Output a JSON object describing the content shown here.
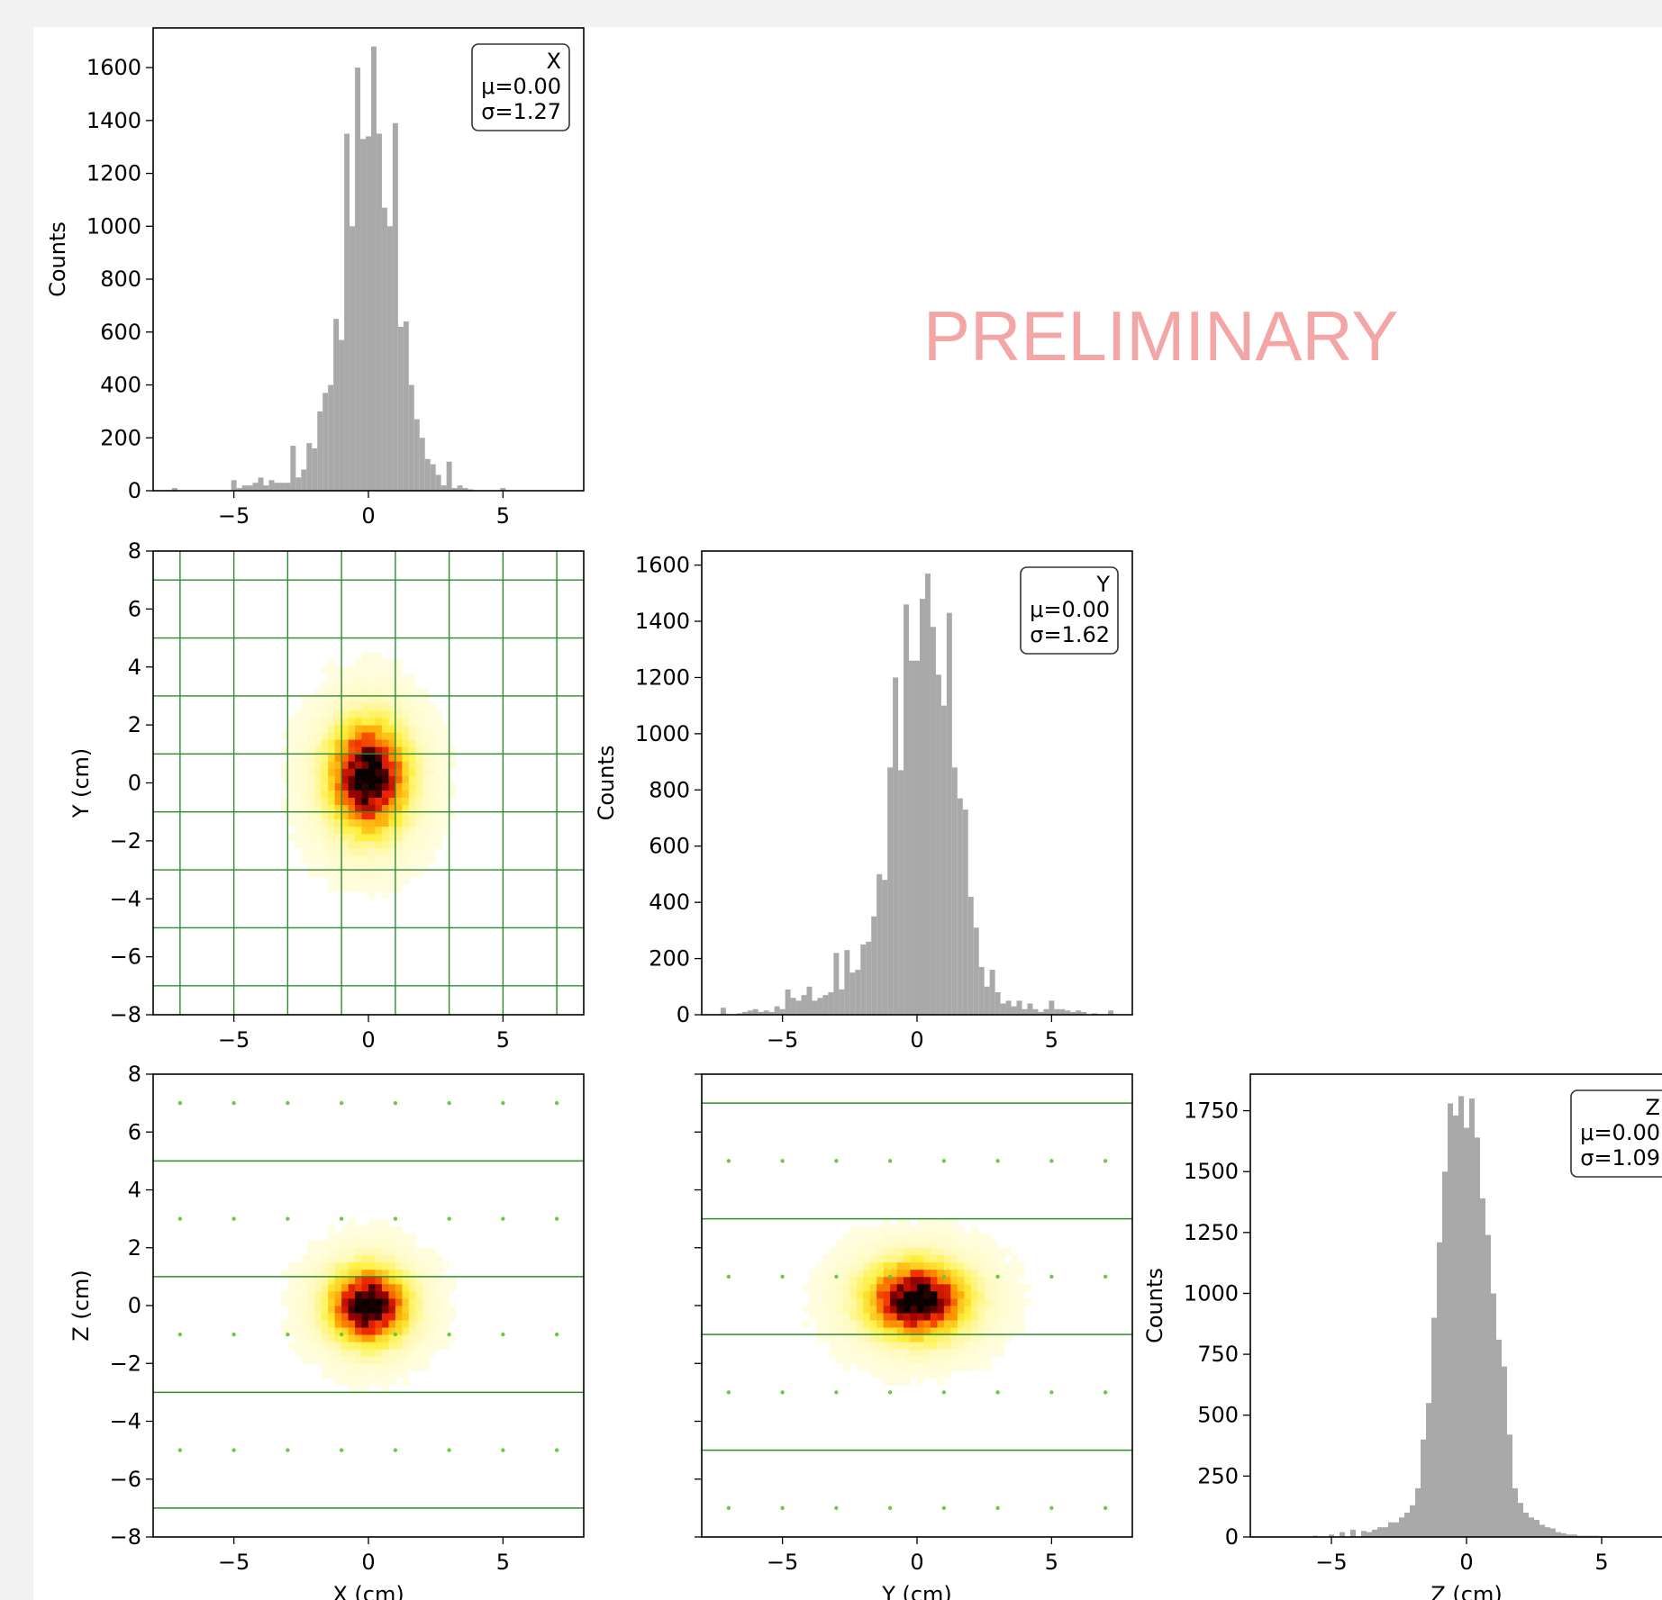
{
  "watermark": "PRELIMINARY",
  "colors": {
    "hist_fill": "#a9a9a9",
    "grid_green": "#2e8b2e",
    "dot_green": "#66cc44",
    "page_bg": "#f2f2f2",
    "panel_bg": "#ffffff",
    "watermark": "#f4a6a6"
  },
  "chart_data": [
    {
      "id": "hist_x",
      "type": "bar",
      "subtype": "histogram",
      "xlim": [
        -8,
        8
      ],
      "ylim": [
        0,
        1750
      ],
      "xticks": [
        -5,
        0,
        5
      ],
      "yticks": [
        0,
        200,
        400,
        600,
        800,
        1000,
        1200,
        1400,
        1600
      ],
      "ylabel": "Counts",
      "xlabel": "",
      "bin_centers": [
        -7.2,
        -5.0,
        -4.8,
        -4.6,
        -4.4,
        -4.2,
        -4.0,
        -3.8,
        -3.6,
        -3.4,
        -3.2,
        -3.0,
        -2.8,
        -2.6,
        -2.4,
        -2.2,
        -2.0,
        -1.8,
        -1.6,
        -1.4,
        -1.2,
        -1.0,
        -0.8,
        -0.6,
        -0.4,
        -0.2,
        0.0,
        0.2,
        0.4,
        0.6,
        0.8,
        1.0,
        1.2,
        1.4,
        1.6,
        1.8,
        2.0,
        2.2,
        2.4,
        2.6,
        2.8,
        3.0,
        3.2,
        3.4,
        3.6,
        3.8,
        5.0
      ],
      "values": [
        10,
        40,
        10,
        20,
        20,
        30,
        50,
        20,
        40,
        30,
        30,
        30,
        170,
        50,
        80,
        180,
        160,
        300,
        370,
        400,
        650,
        570,
        1350,
        1000,
        1600,
        1330,
        1340,
        1680,
        1350,
        1070,
        1000,
        1390,
        620,
        640,
        400,
        270,
        200,
        120,
        100,
        60,
        20,
        110,
        10,
        20,
        10,
        5,
        10
      ],
      "stats": {
        "label": "X",
        "mu": "μ=0.00",
        "sigma": "σ=1.27"
      }
    },
    {
      "id": "hist_y",
      "type": "bar",
      "subtype": "histogram",
      "xlim": [
        -8,
        8
      ],
      "ylim": [
        0,
        1650
      ],
      "xticks": [
        -5,
        0,
        5
      ],
      "yticks": [
        0,
        200,
        400,
        600,
        800,
        1000,
        1200,
        1400,
        1600
      ],
      "ylabel": "Counts",
      "xlabel": "",
      "bin_centers": [
        -7.2,
        -6.6,
        -6.4,
        -6.2,
        -6.0,
        -5.8,
        -5.6,
        -5.4,
        -5.2,
        -5.0,
        -4.8,
        -4.6,
        -4.4,
        -4.2,
        -4.0,
        -3.8,
        -3.6,
        -3.4,
        -3.2,
        -3.0,
        -2.8,
        -2.6,
        -2.4,
        -2.2,
        -2.0,
        -1.8,
        -1.6,
        -1.4,
        -1.2,
        -1.0,
        -0.8,
        -0.6,
        -0.4,
        -0.2,
        0.0,
        0.2,
        0.4,
        0.6,
        0.8,
        1.0,
        1.2,
        1.4,
        1.6,
        1.8,
        2.0,
        2.2,
        2.4,
        2.6,
        2.8,
        3.0,
        3.2,
        3.4,
        3.6,
        3.8,
        4.0,
        4.2,
        4.4,
        4.6,
        4.8,
        5.0,
        5.2,
        5.4,
        5.6,
        5.8,
        6.0,
        6.2,
        6.6,
        7.2
      ],
      "values": [
        25,
        5,
        10,
        15,
        20,
        10,
        15,
        10,
        30,
        20,
        90,
        60,
        50,
        70,
        100,
        50,
        60,
        70,
        80,
        220,
        90,
        230,
        150,
        160,
        250,
        260,
        350,
        500,
        480,
        880,
        1200,
        870,
        1460,
        1260,
        1260,
        1480,
        1570,
        1380,
        1210,
        1100,
        1430,
        880,
        770,
        730,
        420,
        310,
        170,
        100,
        160,
        80,
        40,
        50,
        30,
        50,
        20,
        40,
        20,
        10,
        20,
        50,
        20,
        20,
        15,
        10,
        15,
        10,
        5,
        15
      ],
      "stats": {
        "label": "Y",
        "mu": "μ=0.00",
        "sigma": "σ=1.62"
      }
    },
    {
      "id": "hist_z",
      "type": "bar",
      "subtype": "histogram",
      "xlim": [
        -8,
        8
      ],
      "ylim": [
        0,
        1900
      ],
      "xticks": [
        -5,
        0,
        5
      ],
      "yticks": [
        0,
        250,
        500,
        750,
        1000,
        1250,
        1500,
        1750
      ],
      "ylabel": "Counts",
      "xlabel": "Z (cm)",
      "bin_centers": [
        -5.6,
        -5.0,
        -4.6,
        -4.2,
        -3.8,
        -3.6,
        -3.4,
        -3.2,
        -3.0,
        -2.8,
        -2.6,
        -2.4,
        -2.2,
        -2.0,
        -1.8,
        -1.6,
        -1.4,
        -1.2,
        -1.0,
        -0.8,
        -0.6,
        -0.4,
        -0.2,
        0.0,
        0.2,
        0.4,
        0.6,
        0.8,
        1.0,
        1.2,
        1.4,
        1.6,
        1.8,
        2.0,
        2.2,
        2.4,
        2.6,
        2.8,
        3.0,
        3.2,
        3.4,
        3.6,
        3.8,
        4.0,
        4.2,
        4.4,
        4.6,
        4.8,
        5.0,
        5.4
      ],
      "values": [
        5,
        10,
        20,
        30,
        25,
        20,
        30,
        40,
        40,
        60,
        60,
        80,
        100,
        130,
        200,
        400,
        550,
        900,
        1210,
        1500,
        1780,
        1730,
        1810,
        1680,
        1800,
        1640,
        1390,
        1240,
        1000,
        810,
        700,
        420,
        200,
        140,
        100,
        80,
        70,
        50,
        40,
        35,
        20,
        15,
        10,
        10,
        5,
        5,
        5,
        5,
        3,
        2
      ],
      "stats": {
        "label": "Z",
        "mu": "μ=0.00",
        "sigma": "σ=1.09"
      }
    },
    {
      "id": "heat_xy",
      "type": "heatmap",
      "xlim": [
        -8,
        8
      ],
      "ylim": [
        -8,
        8
      ],
      "xticks": [
        -5,
        0,
        5
      ],
      "yticks": [
        -8,
        -6,
        -4,
        -2,
        0,
        2,
        4,
        6,
        8
      ],
      "xlabel": "",
      "ylabel": "Y (cm)",
      "center": [
        0.0,
        0.2
      ],
      "spread": [
        1.25,
        1.6
      ],
      "grid_lines": {
        "x": [
          -7,
          -5,
          -3,
          -1,
          1,
          3,
          5,
          7
        ],
        "y": [
          -7,
          -5,
          -3,
          -1,
          1,
          3,
          5,
          7
        ]
      },
      "dots": {
        "x": [],
        "y": []
      }
    },
    {
      "id": "heat_xz",
      "type": "heatmap",
      "xlim": [
        -8,
        8
      ],
      "ylim": [
        -8,
        8
      ],
      "xticks": [
        -5,
        0,
        5
      ],
      "yticks": [
        -8,
        -6,
        -4,
        -2,
        0,
        2,
        4,
        6,
        8
      ],
      "xlabel": "X (cm)",
      "ylabel": "Z (cm)",
      "center": [
        0.0,
        0.0
      ],
      "spread": [
        1.25,
        1.1
      ],
      "grid_lines": {
        "x": [],
        "y": [
          -7,
          -3,
          1,
          5
        ]
      },
      "dots": {
        "x": [
          -7,
          -5,
          -3,
          -1,
          1,
          3,
          5,
          7
        ],
        "y": [
          -5,
          -1,
          3,
          7
        ]
      }
    },
    {
      "id": "heat_yz",
      "type": "heatmap",
      "xlim": [
        -8,
        8
      ],
      "ylim": [
        -8,
        8
      ],
      "xticks": [
        -5,
        0,
        5
      ],
      "yticks": [
        -8,
        -6,
        -4,
        -2,
        0,
        2,
        4,
        6,
        8
      ],
      "xlabel": "Y (cm)",
      "ylabel": "",
      "center": [
        0.0,
        0.2
      ],
      "spread": [
        1.6,
        1.1
      ],
      "grid_lines": {
        "x": [],
        "y": [
          -5,
          -1,
          3,
          7
        ]
      },
      "dots": {
        "x": [
          -7,
          -5,
          -3,
          -1,
          1,
          3,
          5,
          7
        ],
        "y": [
          -7,
          -3,
          1,
          5
        ]
      }
    }
  ]
}
